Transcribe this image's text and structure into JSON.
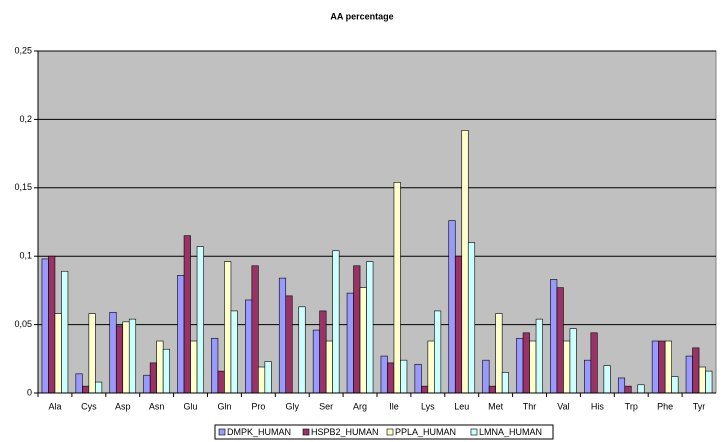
{
  "chart_data": {
    "type": "bar",
    "title": "AA percentage",
    "categories": [
      "Ala",
      "Cys",
      "Asp",
      "Asn",
      "Glu",
      "Gln",
      "Pro",
      "Gly",
      "Ser",
      "Arg",
      "Ile",
      "Lys",
      "Leu",
      "Met",
      "Thr",
      "Val",
      "His",
      "Trp",
      "Phe",
      "Tyr"
    ],
    "series": [
      {
        "name": "DMPK_HUMAN",
        "color": "#9999ff",
        "values": [
          0.098,
          0.014,
          0.059,
          0.013,
          0.086,
          0.04,
          0.068,
          0.084,
          0.046,
          0.073,
          0.027,
          0.021,
          0.126,
          0.024,
          0.04,
          0.083,
          0.024,
          0.011,
          0.038,
          0.027
        ]
      },
      {
        "name": "HSPB2_HUMAN",
        "color": "#993366",
        "values": [
          0.1,
          0.005,
          0.049,
          0.022,
          0.115,
          0.016,
          0.093,
          0.071,
          0.06,
          0.093,
          0.022,
          0.005,
          0.1,
          0.005,
          0.044,
          0.077,
          0.044,
          0.005,
          0.038,
          0.033
        ]
      },
      {
        "name": "PPLA_HUMAN",
        "color": "#ffffcc",
        "values": [
          0.058,
          0.058,
          0.052,
          0.038,
          0.038,
          0.096,
          0.019,
          0,
          0.038,
          0.077,
          0.154,
          0.038,
          0.192,
          0.058,
          0.038,
          0.038,
          0,
          0,
          0.038,
          0.019
        ]
      },
      {
        "name": "LMNA_HUMAN",
        "color": "#ccffff",
        "values": [
          0.089,
          0.008,
          0.054,
          0.032,
          0.107,
          0.06,
          0.023,
          0.063,
          0.104,
          0.096,
          0.024,
          0.06,
          0.11,
          0.015,
          0.054,
          0.047,
          0.02,
          0.006,
          0.012,
          0.016
        ]
      }
    ],
    "ylim": [
      0,
      0.25
    ],
    "yticks": [
      0,
      {
        "value": 0.05,
        "label": "0,05"
      },
      {
        "value": 0.1,
        "label": "0,1"
      },
      {
        "value": 0.15,
        "label": "0,15"
      },
      {
        "value": 0.2,
        "label": "0,2"
      },
      {
        "value": 0.25,
        "label": "0,25"
      }
    ],
    "grid": true,
    "plot_background": "#c0c0c0",
    "legend": "bottom"
  }
}
